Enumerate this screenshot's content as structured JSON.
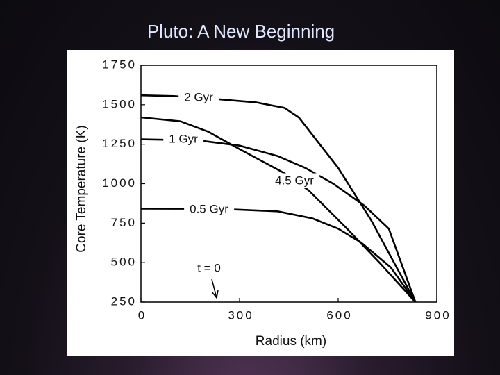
{
  "title": "Pluto: A New Beginning",
  "chart_data": {
    "type": "line",
    "x_label": "Radius (km)",
    "y_label": "Core Temperature (K)",
    "xlim": [
      0,
      900
    ],
    "xticks": [
      0,
      300,
      600,
      900
    ],
    "ylim": [
      250,
      1750
    ],
    "yticks": [
      250,
      500,
      750,
      1000,
      1250,
      1500,
      1750
    ],
    "color": "#000000",
    "annotation": "t = 0",
    "series": [
      {
        "name": "2 Gyr",
        "x": [
          0,
          100,
          237,
          350,
          437,
          480,
          600,
          700,
          835
        ],
        "values": [
          1560,
          1555,
          1535,
          1515,
          1480,
          1420,
          1100,
          770,
          250
        ]
      },
      {
        "name": "1 Gyr",
        "x": [
          0,
          80,
          184,
          300,
          416,
          500,
          585,
          680,
          754,
          835
        ],
        "values": [
          1281,
          1278,
          1272,
          1241,
          1175,
          1100,
          1000,
          860,
          715,
          250
        ]
      },
      {
        "name": "4.5 Gyr",
        "x": [
          0,
          120,
          205,
          300,
          437,
          511,
          627,
          730,
          835
        ],
        "values": [
          1420,
          1395,
          1329,
          1219,
          1066,
          956,
          715,
          490,
          250
        ]
      },
      {
        "name": "0.5 Gyr",
        "x": [
          0,
          150,
          268,
          416,
          522,
          600,
          670,
          760,
          835
        ],
        "values": [
          842,
          841,
          838,
          825,
          780,
          715,
          627,
          470,
          250
        ]
      }
    ]
  }
}
